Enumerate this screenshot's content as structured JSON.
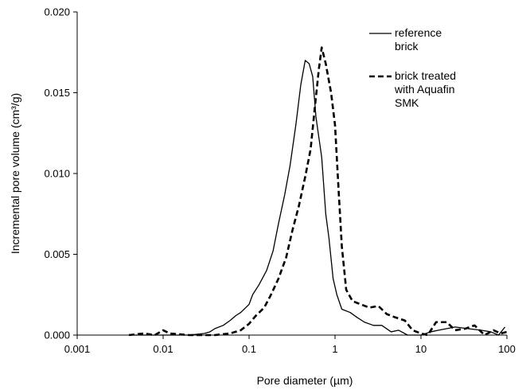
{
  "chart_data": {
    "type": "line",
    "xlabel": "Pore diameter (µm)",
    "ylabel": "Incremental pore volume (cm³/g)",
    "x_scale": "log",
    "xlim": [
      0.001,
      100
    ],
    "ylim": [
      0.0,
      0.02
    ],
    "x_ticks": [
      0.001,
      0.01,
      0.1,
      1,
      10,
      100
    ],
    "x_tick_labels": [
      "0.001",
      "0.01",
      "0.1",
      "1",
      "10",
      "100"
    ],
    "y_ticks": [
      0.0,
      0.005,
      0.01,
      0.015,
      0.02
    ],
    "y_tick_labels": [
      "0.000",
      "0.005",
      "0.010",
      "0.015",
      "0.020"
    ],
    "grid": false,
    "legend_position": "top-right",
    "series": [
      {
        "name": "reference brick",
        "legend_lines": [
          "reference",
          "brick"
        ],
        "style": "solid",
        "color": "#000000",
        "points": [
          [
            0.0045,
            0.0
          ],
          [
            0.01,
            0.0
          ],
          [
            0.02,
            0.0
          ],
          [
            0.03,
            0.0001
          ],
          [
            0.035,
            0.0002
          ],
          [
            0.04,
            0.0004
          ],
          [
            0.05,
            0.0006
          ],
          [
            0.06,
            0.0009
          ],
          [
            0.07,
            0.0012
          ],
          [
            0.08,
            0.0014
          ],
          [
            0.1,
            0.0019
          ],
          [
            0.11,
            0.0025
          ],
          [
            0.13,
            0.0031
          ],
          [
            0.16,
            0.004
          ],
          [
            0.19,
            0.0052
          ],
          [
            0.22,
            0.0069
          ],
          [
            0.26,
            0.0087
          ],
          [
            0.3,
            0.0105
          ],
          [
            0.35,
            0.013
          ],
          [
            0.4,
            0.0155
          ],
          [
            0.45,
            0.017
          ],
          [
            0.5,
            0.0168
          ],
          [
            0.55,
            0.016
          ],
          [
            0.6,
            0.0135
          ],
          [
            0.7,
            0.011
          ],
          [
            0.78,
            0.0075
          ],
          [
            0.85,
            0.006
          ],
          [
            0.95,
            0.0035
          ],
          [
            1.05,
            0.0025
          ],
          [
            1.2,
            0.0016
          ],
          [
            1.5,
            0.0014
          ],
          [
            1.8,
            0.0011
          ],
          [
            2.2,
            0.0008
          ],
          [
            2.8,
            0.0006
          ],
          [
            3.5,
            0.0006
          ],
          [
            4.5,
            0.0002
          ],
          [
            5.5,
            0.0003
          ],
          [
            7,
            0.0
          ],
          [
            10,
            0.0
          ],
          [
            13,
            0.0002
          ],
          [
            16,
            0.0003
          ],
          [
            20,
            0.0004
          ],
          [
            25,
            0.0005
          ],
          [
            35,
            0.0004
          ],
          [
            50,
            0.0003
          ],
          [
            65,
            0.0002
          ],
          [
            80,
            0.0
          ],
          [
            95,
            0.0005
          ]
        ]
      },
      {
        "name": "brick treated with Aquafin SMK",
        "legend_lines": [
          "brick treated",
          "with Aquafin",
          "SMK"
        ],
        "style": "dashed",
        "color": "#000000",
        "points": [
          [
            0.004,
            0.0
          ],
          [
            0.006,
            0.0001
          ],
          [
            0.008,
            0.0
          ],
          [
            0.01,
            0.0003
          ],
          [
            0.012,
            0.0001
          ],
          [
            0.02,
            0.0
          ],
          [
            0.04,
            0.0
          ],
          [
            0.06,
            0.0001
          ],
          [
            0.08,
            0.0003
          ],
          [
            0.1,
            0.0007
          ],
          [
            0.12,
            0.0012
          ],
          [
            0.15,
            0.0017
          ],
          [
            0.18,
            0.0025
          ],
          [
            0.22,
            0.0035
          ],
          [
            0.27,
            0.0048
          ],
          [
            0.32,
            0.0065
          ],
          [
            0.38,
            0.008
          ],
          [
            0.45,
            0.0098
          ],
          [
            0.52,
            0.0115
          ],
          [
            0.58,
            0.014
          ],
          [
            0.65,
            0.0165
          ],
          [
            0.7,
            0.0178
          ],
          [
            0.78,
            0.0168
          ],
          [
            0.9,
            0.015
          ],
          [
            1.0,
            0.013
          ],
          [
            1.1,
            0.009
          ],
          [
            1.2,
            0.0055
          ],
          [
            1.35,
            0.0028
          ],
          [
            1.6,
            0.0021
          ],
          [
            2.0,
            0.0019
          ],
          [
            2.5,
            0.0017
          ],
          [
            3.2,
            0.0018
          ],
          [
            4.0,
            0.0013
          ],
          [
            5.0,
            0.0011
          ],
          [
            6.5,
            0.0009
          ],
          [
            8,
            0.0003
          ],
          [
            10,
            0.0001
          ],
          [
            12,
            0.0
          ],
          [
            15,
            0.0008
          ],
          [
            20,
            0.0008
          ],
          [
            25,
            0.0003
          ],
          [
            33,
            0.0004
          ],
          [
            42,
            0.0006
          ],
          [
            55,
            0.0
          ],
          [
            70,
            0.0003
          ],
          [
            85,
            0.0001
          ],
          [
            100,
            0.0002
          ]
        ]
      }
    ]
  }
}
